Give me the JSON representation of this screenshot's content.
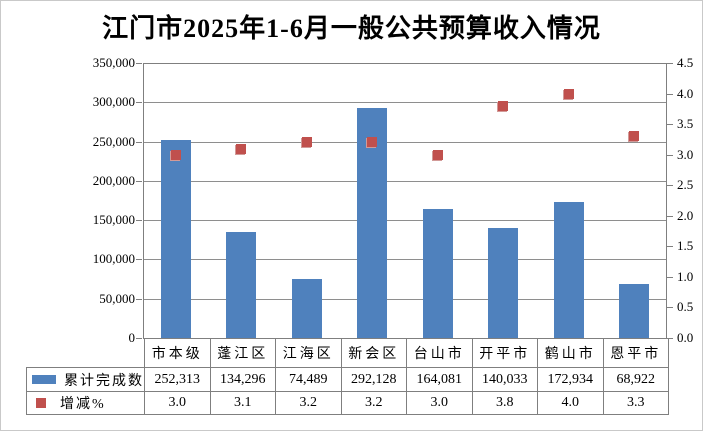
{
  "title": "江门市2025年1-6月一般公共预算收入情况",
  "chart_data": {
    "type": "bar",
    "title": "江门市2025年1-6月一般公共预算收入情况",
    "categories": [
      "市本级",
      "蓬江区",
      "江海区",
      "新会区",
      "台山市",
      "开平市",
      "鹤山市",
      "恩平市"
    ],
    "series": [
      {
        "name": "累计完成数",
        "type": "bar",
        "axis": "left",
        "color": "#4F81BD",
        "values": [
          252313,
          134296,
          74489,
          292128,
          164081,
          140033,
          172934,
          68922
        ]
      },
      {
        "name": "增减%",
        "type": "scatter",
        "marker": "square",
        "axis": "right",
        "color": "#C0504D",
        "values": [
          3.0,
          3.1,
          3.2,
          3.2,
          3.0,
          3.8,
          4.0,
          3.3
        ]
      }
    ],
    "left_axis": {
      "min": 0,
      "max": 350000,
      "step": 50000,
      "tick_labels": [
        "0",
        "50,000",
        "100,000",
        "150,000",
        "200,000",
        "250,000",
        "300,000",
        "350,000"
      ]
    },
    "right_axis": {
      "min": 0,
      "max": 4.5,
      "step": 0.5,
      "tick_labels": [
        "0.0",
        "0.5",
        "1.0",
        "1.5",
        "2.0",
        "2.5",
        "3.0",
        "3.5",
        "4.0",
        "4.5"
      ]
    },
    "grid": true,
    "legend_position": "left-of-data-table"
  },
  "data_table": {
    "categories": [
      "市本级",
      "蓬江区",
      "江海区",
      "新会区",
      "台山市",
      "开平市",
      "鹤山市",
      "恩平市"
    ],
    "rows": [
      {
        "label": "累计完成数",
        "swatch": "bar-swatch",
        "color": "#4F81BD",
        "values": [
          "252,313",
          "134,296",
          "74,489",
          "292,128",
          "164,081",
          "140,033",
          "172,934",
          "68,922"
        ]
      },
      {
        "label": "增减%",
        "swatch": "square-swatch",
        "color": "#C0504D",
        "values": [
          "3.0",
          "3.1",
          "3.2",
          "3.2",
          "3.0",
          "3.8",
          "4.0",
          "3.3"
        ]
      }
    ]
  },
  "colors": {
    "bar": "#4F81BD",
    "marker": "#C0504D",
    "gridline": "#8E8E8E",
    "axis_line": "#7F7F7F",
    "table_border": "#7F7F7F",
    "background": "#FFFFFF",
    "text": "#000000",
    "outer_border": "#C9C9C9"
  }
}
